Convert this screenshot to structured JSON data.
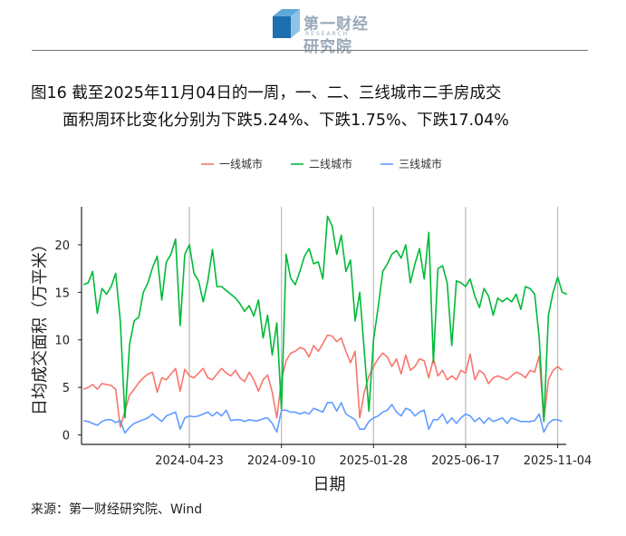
{
  "header": {
    "brand_cn": "第一财经研究院",
    "brand_en": "RESEARCH"
  },
  "title": {
    "line1": "图16 截至2025年11月04日的一周，一、二、三线城市二手房成交",
    "line2": "面积周环比变化分别为下跌5.24%、下跌1.75%、下跌17.04%"
  },
  "source": "来源：第一财经研究院、Wind",
  "chart_data": {
    "type": "line",
    "xlabel": "日期",
    "ylabel": "日均成交面积（万平米）",
    "x_ticks": [
      "2024-04-23",
      "2024-09-10",
      "2025-01-28",
      "2025-06-17",
      "2025-11-04"
    ],
    "ylim": [
      -1,
      24
    ],
    "y_ticks": [
      0,
      5,
      10,
      15,
      20
    ],
    "grid": "vertical",
    "legend_position": "top",
    "x_start": "2023-11-14",
    "x_step_days": 7,
    "series": [
      {
        "name": "一线城市",
        "color": "#F8766D",
        "values": [
          4.8,
          5.0,
          5.3,
          4.8,
          5.4,
          5.3,
          5.2,
          4.8,
          0.8,
          2.5,
          4.2,
          4.8,
          5.5,
          6.0,
          6.4,
          6.6,
          4.5,
          6.0,
          5.8,
          6.4,
          7.0,
          4.6,
          6.9,
          6.2,
          6.0,
          6.5,
          7.0,
          6.0,
          5.8,
          6.4,
          7.0,
          6.5,
          6.2,
          6.8,
          6.0,
          5.6,
          6.6,
          5.8,
          4.6,
          5.8,
          6.3,
          4.5,
          1.8,
          5.8,
          7.8,
          8.6,
          8.8,
          9.2,
          9.0,
          8.2,
          9.4,
          8.8,
          9.6,
          10.5,
          10.4,
          9.8,
          10.2,
          8.8,
          7.6,
          8.8,
          1.8,
          4.5,
          6.2,
          7.2,
          8.0,
          8.6,
          8.2,
          7.2,
          8.0,
          6.4,
          8.4,
          6.8,
          7.2,
          8.0,
          7.8,
          6.0,
          8.0,
          6.2,
          6.8,
          5.8,
          6.2,
          5.8,
          6.8,
          6.5,
          8.5,
          5.8,
          6.8,
          6.4,
          5.4,
          6.0,
          6.2,
          6.0,
          5.8,
          6.2,
          6.6,
          6.4,
          6.0,
          6.8,
          6.6,
          8.3,
          1.5,
          5.8,
          6.8,
          7.2,
          6.8
        ]
      },
      {
        "name": "二线城市",
        "color": "#00BA38",
        "values": [
          15.8,
          16.0,
          17.2,
          12.8,
          15.4,
          14.8,
          15.6,
          17.0,
          12.0,
          1.8,
          9.5,
          12.0,
          12.4,
          15.0,
          16.0,
          17.6,
          18.8,
          14.2,
          18.2,
          19.0,
          20.6,
          11.5,
          19.0,
          20.0,
          17.0,
          16.2,
          14.0,
          16.2,
          19.5,
          15.6,
          15.6,
          15.2,
          14.8,
          14.4,
          13.8,
          13.0,
          13.6,
          12.5,
          14.2,
          10.2,
          12.6,
          8.4,
          11.8,
          2.6,
          19.0,
          16.5,
          15.8,
          17.2,
          18.8,
          19.6,
          18.0,
          18.2,
          16.4,
          23.0,
          22.0,
          19.0,
          21.0,
          17.2,
          18.4,
          12.0,
          15.0,
          8.8,
          2.5,
          10.0,
          13.4,
          17.2,
          18.0,
          19.0,
          19.4,
          18.6,
          20.0,
          16.0,
          18.0,
          19.6,
          16.4,
          21.3,
          7.6,
          17.5,
          17.8,
          16.0,
          9.4,
          16.2,
          16.0,
          15.6,
          16.4,
          14.6,
          13.4,
          15.4,
          14.6,
          12.6,
          14.4,
          14.0,
          14.4,
          14.0,
          14.8,
          13.2,
          15.6,
          15.4,
          14.8,
          10.2,
          1.4,
          12.6,
          15.0,
          16.6,
          15.0,
          14.8
        ]
      },
      {
        "name": "三线城市",
        "color": "#619CFF",
        "values": [
          1.5,
          1.4,
          1.2,
          1.0,
          1.4,
          1.6,
          1.6,
          1.3,
          1.5,
          0.2,
          0.8,
          1.2,
          1.4,
          1.6,
          1.8,
          2.2,
          1.8,
          1.4,
          2.0,
          2.2,
          2.4,
          0.6,
          1.8,
          2.0,
          1.9,
          2.0,
          2.2,
          2.4,
          2.0,
          2.4,
          2.0,
          2.6,
          1.5,
          1.6,
          1.6,
          1.4,
          1.6,
          1.5,
          1.5,
          1.7,
          1.8,
          1.2,
          0.3,
          2.6,
          2.6,
          2.4,
          2.4,
          2.2,
          2.4,
          2.2,
          2.8,
          2.6,
          2.4,
          3.4,
          3.4,
          2.5,
          3.4,
          2.2,
          1.9,
          1.6,
          0.6,
          0.6,
          1.4,
          1.8,
          2.0,
          2.4,
          2.6,
          3.2,
          2.4,
          2.0,
          2.8,
          2.6,
          2.0,
          2.4,
          2.6,
          0.6,
          1.6,
          1.6,
          2.2,
          1.2,
          1.8,
          1.2,
          1.8,
          2.2,
          2.0,
          1.4,
          1.8,
          1.2,
          1.8,
          1.4,
          1.6,
          1.8,
          1.2,
          1.8,
          1.6,
          1.4,
          1.4,
          1.4,
          1.5,
          2.2,
          0.3,
          1.2,
          1.6,
          1.6,
          1.4
        ]
      }
    ]
  }
}
